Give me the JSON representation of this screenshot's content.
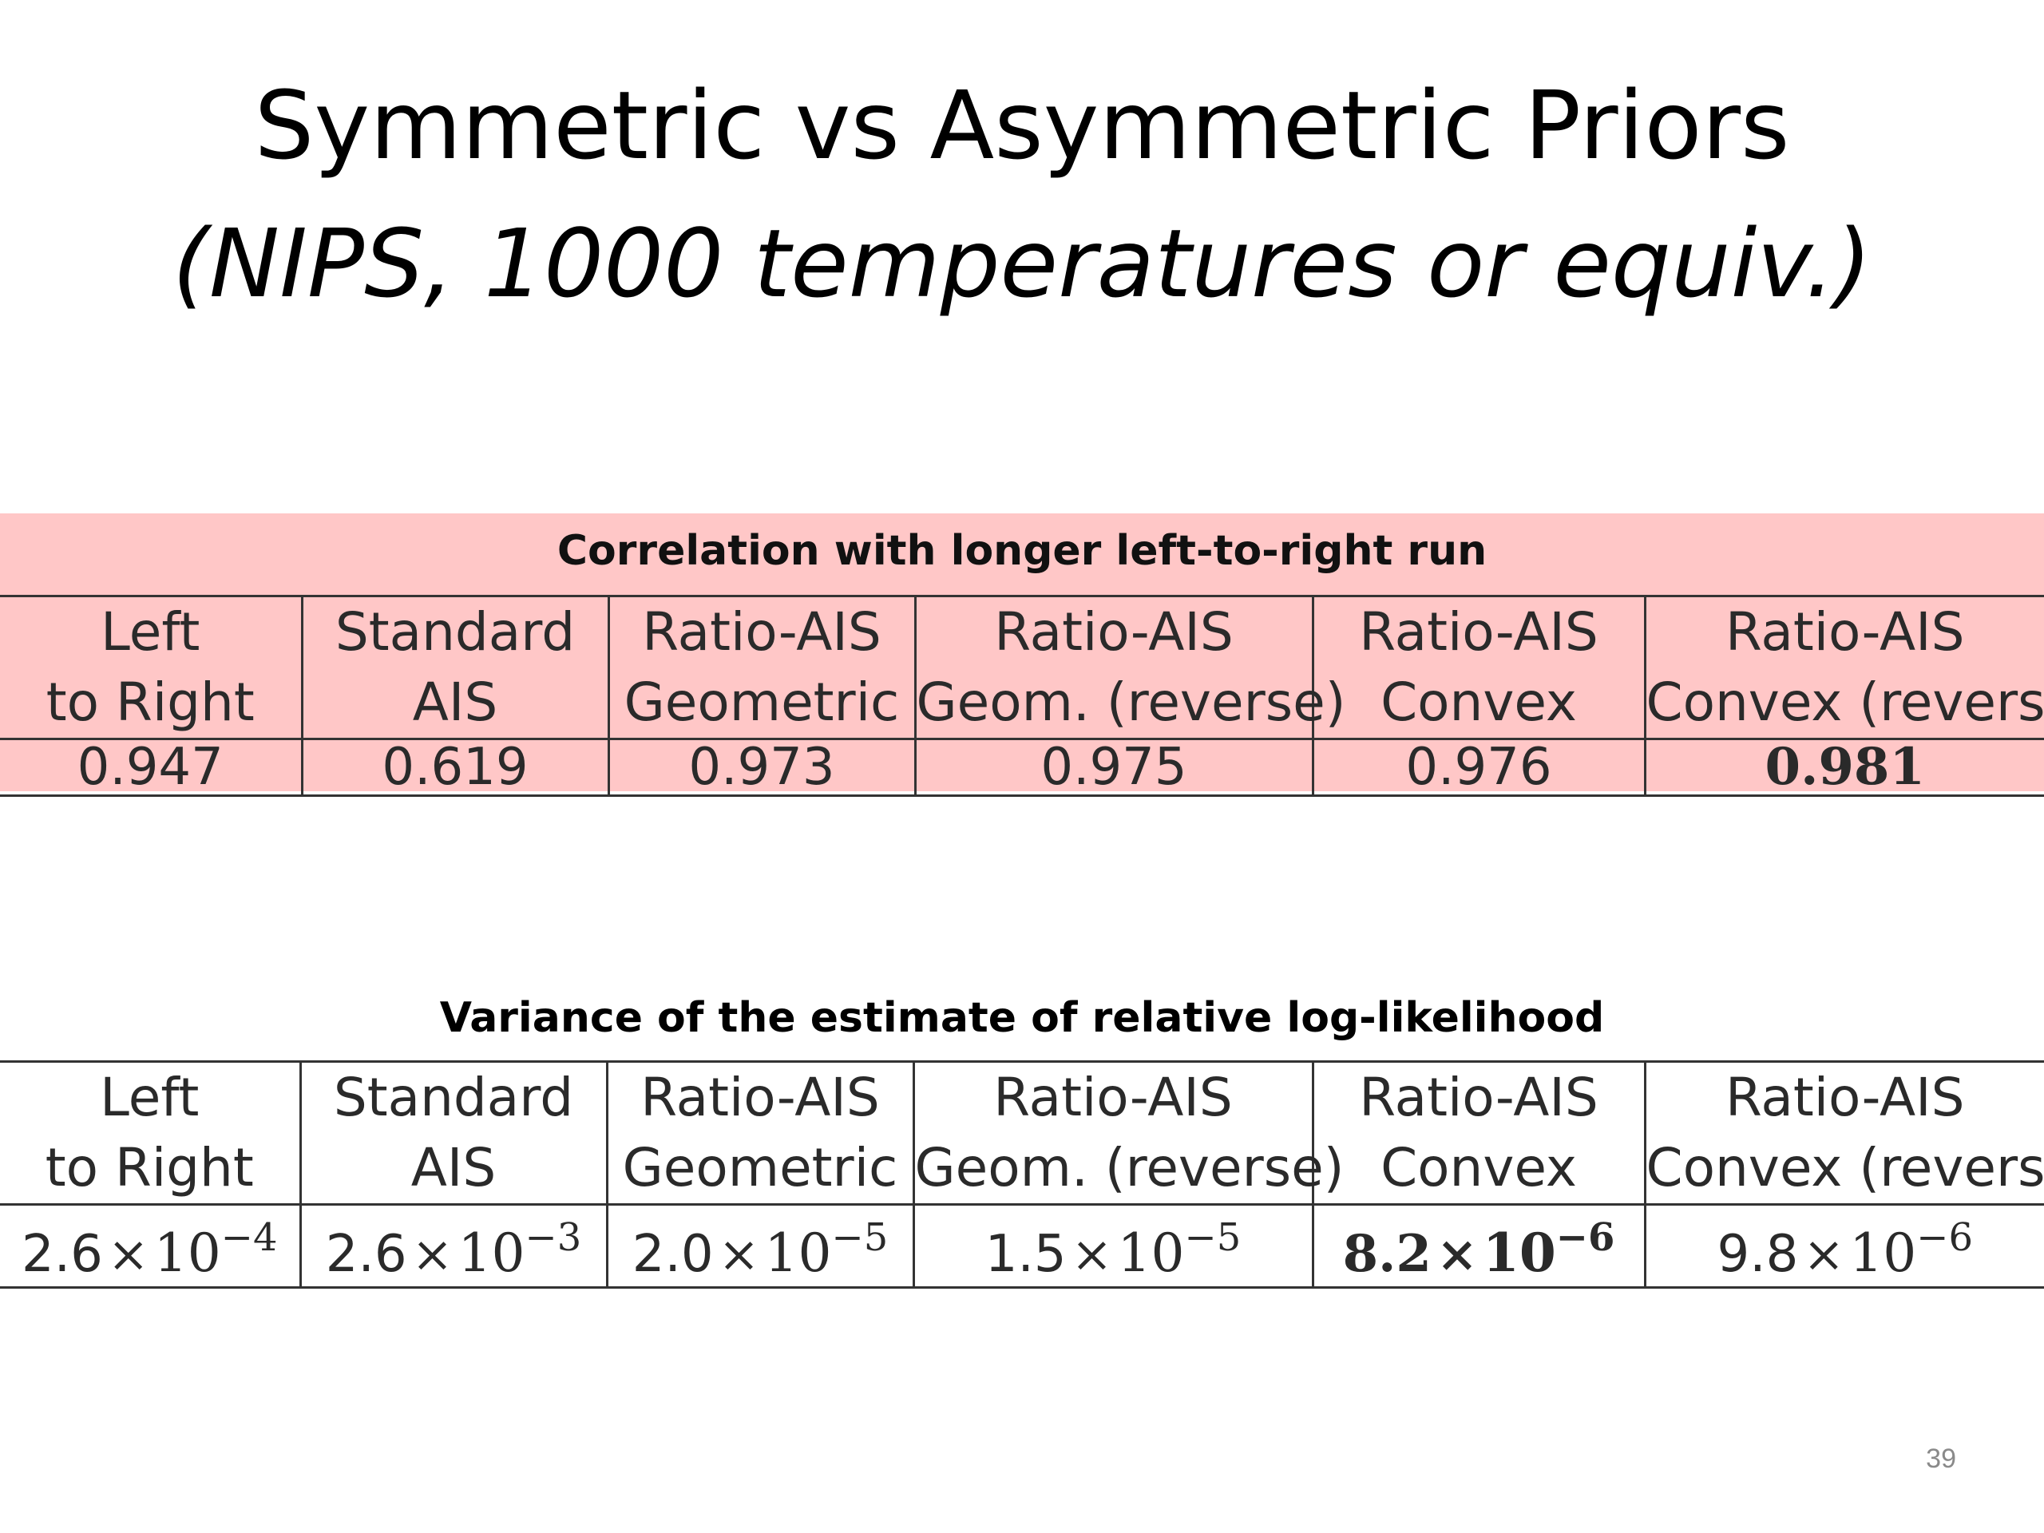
{
  "slide": {
    "title_line1": "Symmetric vs Asymmetric Priors",
    "title_line2": "(NIPS, 1000 temperatures or equiv.)",
    "slide_number": "39"
  },
  "table1": {
    "caption": "Correlation with longer left-to-right run",
    "highlight_color": "#ffc7c7",
    "headers": [
      {
        "line1": "Left",
        "line2": "to Right"
      },
      {
        "line1": "Standard",
        "line2": "AIS"
      },
      {
        "line1": "Ratio-AIS",
        "line2": "Geometric"
      },
      {
        "line1": "Ratio-AIS",
        "line2": "Geom.  (reverse)"
      },
      {
        "line1": "Ratio-AIS",
        "line2": "Convex"
      },
      {
        "line1": "Ratio-AIS",
        "line2": "Convex (reverse)"
      }
    ],
    "values": [
      "0.947",
      "0.619",
      "0.973",
      "0.975",
      "0.976",
      "0.981"
    ],
    "bold_index": 5
  },
  "table2": {
    "caption": "Variance of the estimate of relative log-likelihood",
    "headers": [
      {
        "line1": "Left",
        "line2": "to Right"
      },
      {
        "line1": "Standard",
        "line2": "AIS"
      },
      {
        "line1": "Ratio-AIS",
        "line2": "Geometric"
      },
      {
        "line1": "Ratio-AIS",
        "line2": "Geom.  (reverse)"
      },
      {
        "line1": "Ratio-AIS",
        "line2": "Convex"
      },
      {
        "line1": "Ratio-AIS",
        "line2": "Convex (reverse)"
      }
    ],
    "values": [
      {
        "mantissa": "2.6",
        "times": "×",
        "base": "10",
        "exponent": "−4"
      },
      {
        "mantissa": "2.6",
        "times": "×",
        "base": "10",
        "exponent": "−3"
      },
      {
        "mantissa": "2.0",
        "times": "×",
        "base": "10",
        "exponent": "−5"
      },
      {
        "mantissa": "1.5",
        "times": "×",
        "base": "10",
        "exponent": "−5"
      },
      {
        "mantissa": "8.2",
        "times": "×",
        "base": "10",
        "exponent": "−6"
      },
      {
        "mantissa": "9.8",
        "times": "×",
        "base": "10",
        "exponent": "−6"
      }
    ],
    "bold_index": 4
  }
}
